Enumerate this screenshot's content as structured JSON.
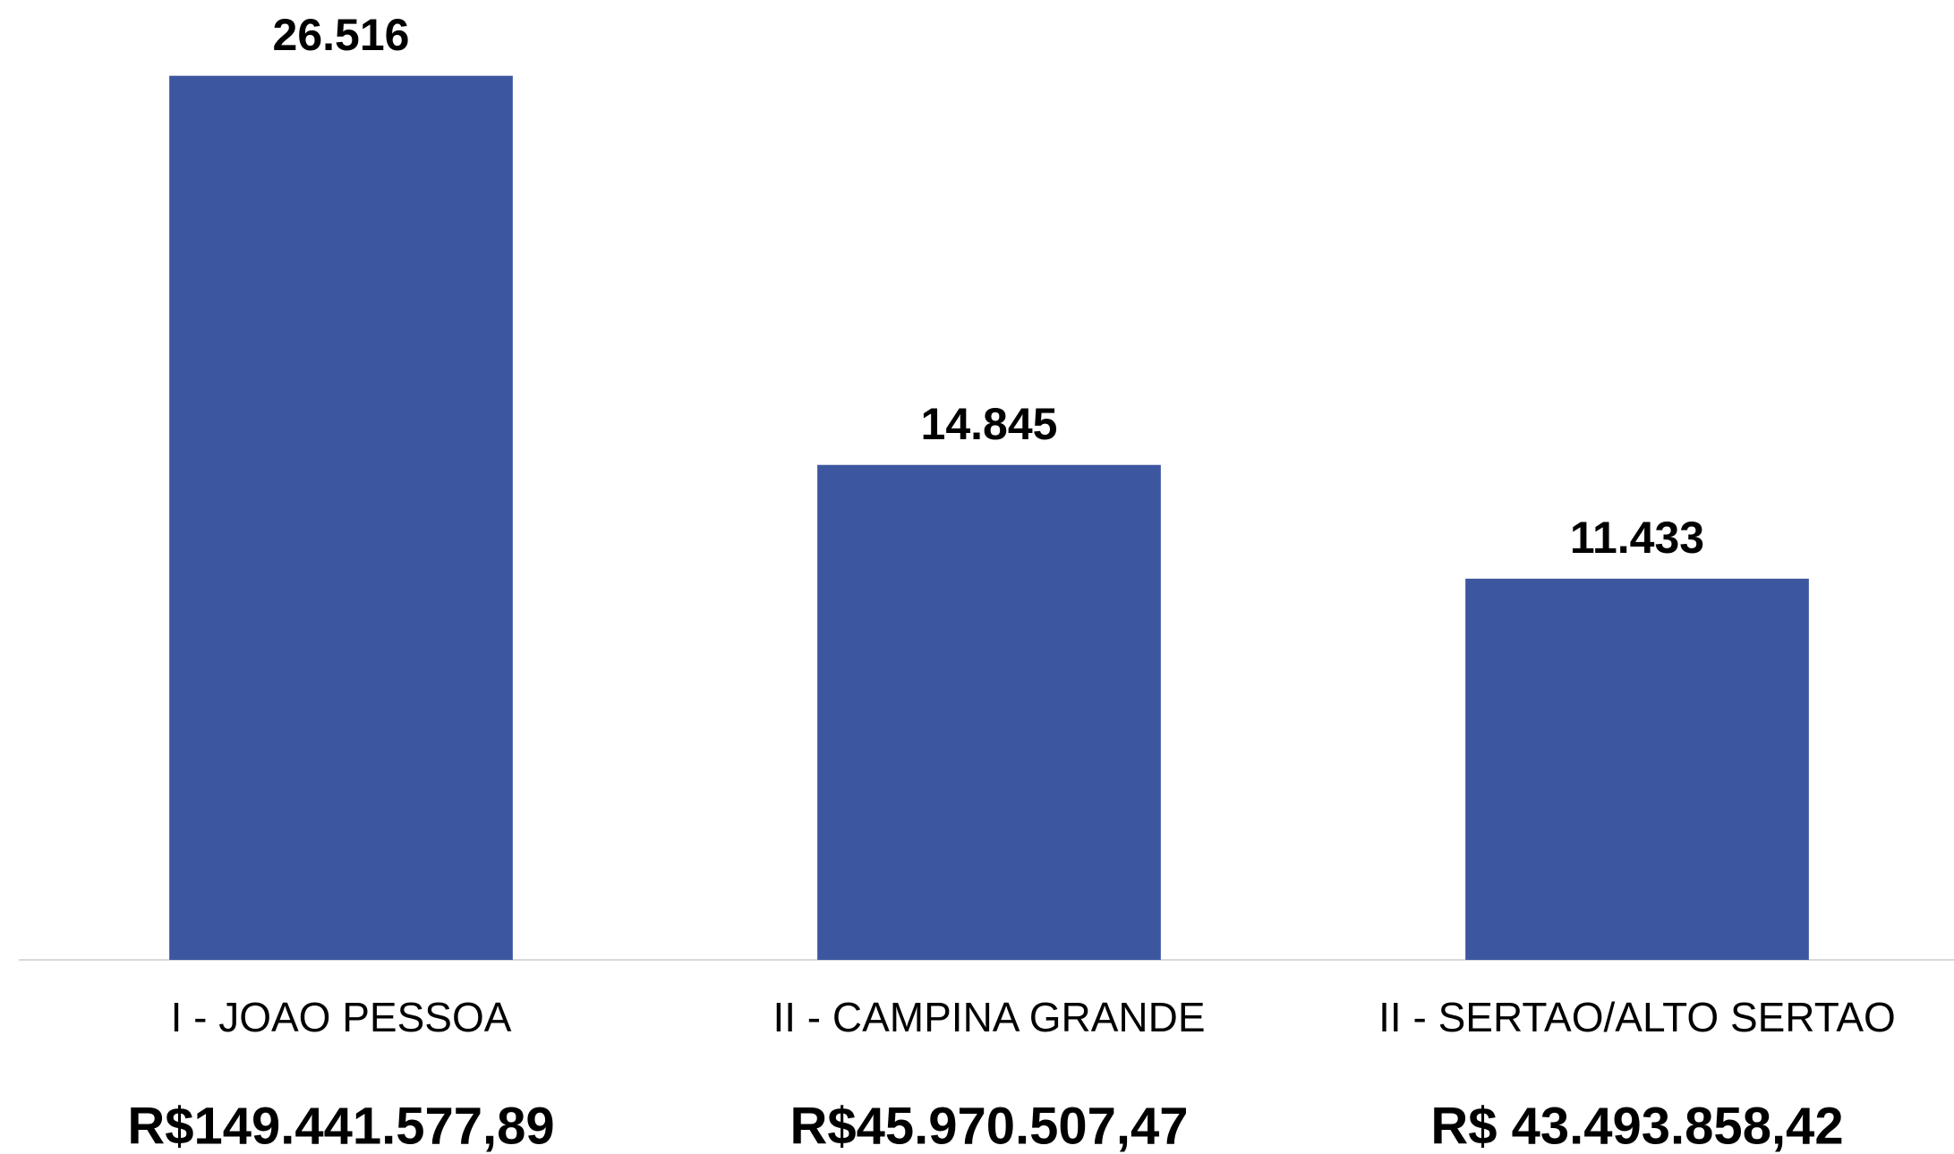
{
  "chart_data": {
    "type": "bar",
    "categories": [
      "I - JOAO PESSOA",
      "II - CAMPINA GRANDE",
      "II - SERTAO/ALTO SERTAO"
    ],
    "category_notes": [
      "R$149.441.577,89",
      "R$45.970.507,47",
      "R$ 43.493.858,42"
    ],
    "values": [
      26516,
      14845,
      11433
    ],
    "value_labels": [
      "26.516",
      "14.845",
      "11.433"
    ],
    "color": "#3d56a0",
    "ylim": [
      0,
      28000
    ],
    "grid": false
  }
}
